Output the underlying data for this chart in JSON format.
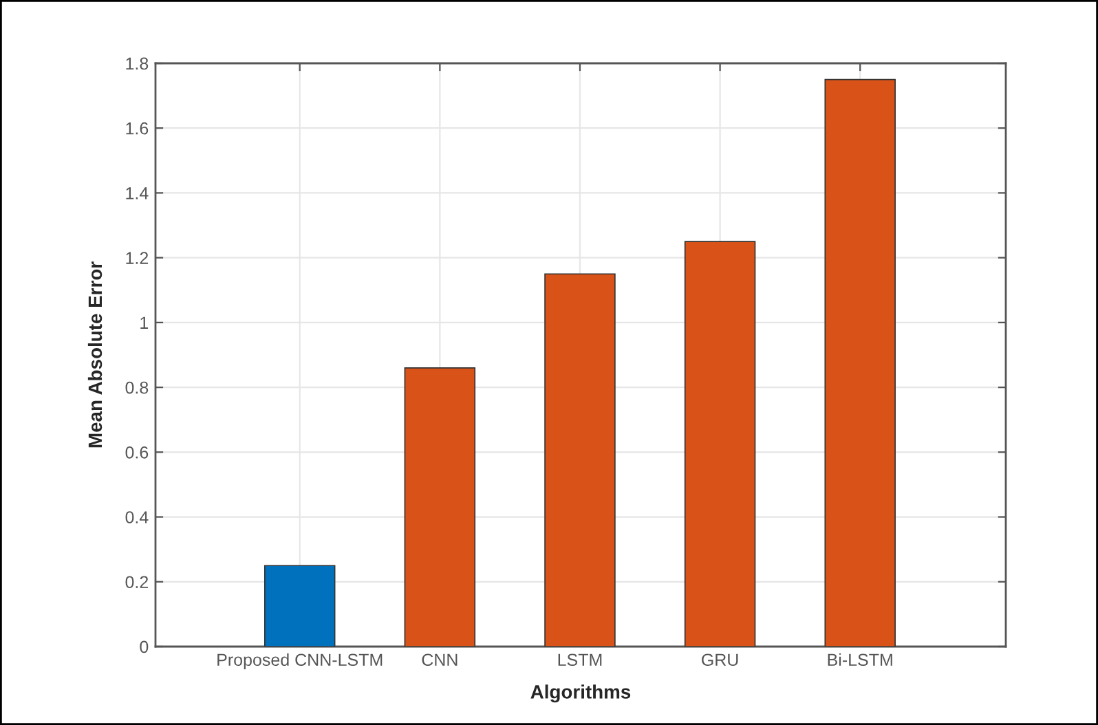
{
  "chart_data": {
    "type": "bar",
    "xlabel": "Algorithms",
    "ylabel": "Mean Absolute Error",
    "categories": [
      "Proposed CNN-LSTM",
      "CNN",
      "LSTM",
      "GRU",
      "Bi-LSTM"
    ],
    "values": [
      0.25,
      0.86,
      1.15,
      1.25,
      1.75
    ],
    "colors": [
      "#0072bd",
      "#d95319",
      "#d95319",
      "#d95319",
      "#d95319"
    ],
    "ylim": [
      0,
      1.8
    ],
    "yticks": [
      0,
      {
        "value": 0.2,
        "label": "0.2"
      },
      {
        "value": 0.4,
        "label": "0.4"
      },
      {
        "value": 0.6,
        "label": "0.6"
      },
      {
        "value": 0.8,
        "label": "0.8"
      },
      1,
      {
        "value": 1.2,
        "label": "1.2"
      },
      {
        "value": 1.4,
        "label": "1.4"
      },
      {
        "value": 1.6,
        "label": "1.6"
      },
      {
        "value": 1.8,
        "label": "1.8"
      }
    ],
    "grid": true
  }
}
